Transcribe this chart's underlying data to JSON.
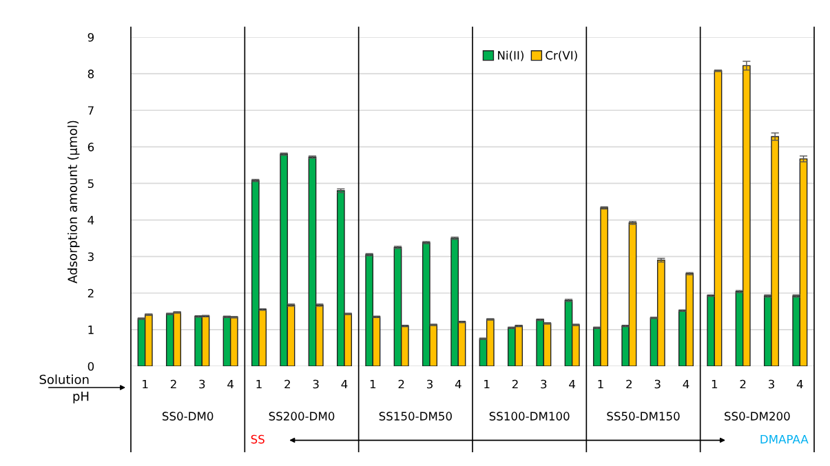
{
  "chart_data": {
    "type": "bar",
    "ylabel": "Adsorption amount (μmol)",
    "categories": [
      "1",
      "2",
      "3",
      "4",
      "1",
      "2",
      "3",
      "4",
      "1",
      "2",
      "3",
      "4",
      "1",
      "2",
      "3",
      "4",
      "1",
      "2",
      "3",
      "4",
      "1",
      "2",
      "3",
      "4"
    ],
    "series": [
      {
        "name": "Ni(II)",
        "color": "#00b050",
        "values": [
          1.3,
          1.43,
          1.36,
          1.35,
          5.08,
          5.8,
          5.72,
          4.8,
          3.05,
          3.25,
          3.38,
          3.5,
          0.75,
          1.05,
          1.27,
          1.8,
          1.05,
          1.1,
          1.32,
          1.52,
          1.93,
          2.04,
          1.92,
          1.92
        ],
        "errors": [
          0.02,
          0.02,
          0.02,
          0.02,
          0.03,
          0.03,
          0.03,
          0.05,
          0.03,
          0.03,
          0.03,
          0.03,
          0.02,
          0.02,
          0.02,
          0.03,
          0.02,
          0.02,
          0.02,
          0.02,
          0.02,
          0.03,
          0.03,
          0.03
        ]
      },
      {
        "name": "Cr(VI)",
        "color": "#ffc000",
        "values": [
          1.41,
          1.47,
          1.37,
          1.34,
          1.55,
          1.67,
          1.67,
          1.43,
          1.35,
          1.1,
          1.13,
          1.21,
          1.28,
          1.1,
          1.17,
          1.13,
          4.33,
          3.92,
          2.9,
          2.53,
          8.08,
          8.22,
          6.28,
          5.67
        ],
        "errors": [
          0.02,
          0.02,
          0.02,
          0.02,
          0.02,
          0.03,
          0.03,
          0.02,
          0.02,
          0.02,
          0.02,
          0.02,
          0.02,
          0.02,
          0.02,
          0.02,
          0.03,
          0.04,
          0.05,
          0.03,
          0.02,
          0.12,
          0.1,
          0.08
        ]
      }
    ],
    "ylim": [
      0,
      9
    ],
    "yticks": [
      0,
      1,
      2,
      3,
      4,
      5,
      6,
      7,
      8,
      9
    ],
    "grid": "y",
    "legend": "top",
    "annotations": [
      "Solution\npH",
      "SS0-DM0",
      "SS200-DM0",
      "SS150-DM50",
      "SS100-DM100",
      "SS50-DM150",
      "SS0-DM200",
      "SS",
      "DMAPAA"
    ]
  }
}
